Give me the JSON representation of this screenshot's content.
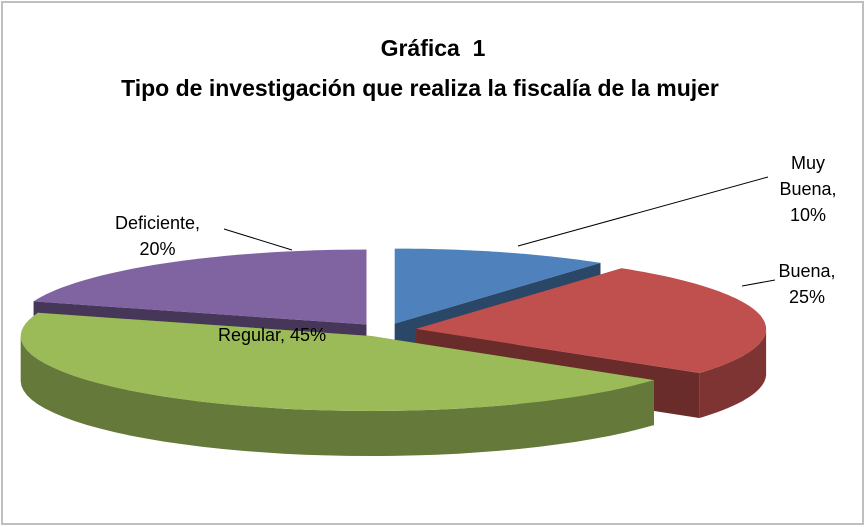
{
  "chart_data": {
    "type": "pie",
    "title": "Gráfica  1",
    "subtitle": "Tipo de investigación que realiza la fiscalía de la mujer",
    "labels": [
      "Muy Buena, 10%",
      "Buena, 25%",
      "Regular, 45%",
      "Deficiente, 20%"
    ],
    "values": [
      10,
      25,
      45,
      20
    ],
    "colors": [
      "#4f81bd",
      "#c0504d",
      "#9bbb59",
      "#8064a2"
    ],
    "exploded": true,
    "three_d": true
  }
}
